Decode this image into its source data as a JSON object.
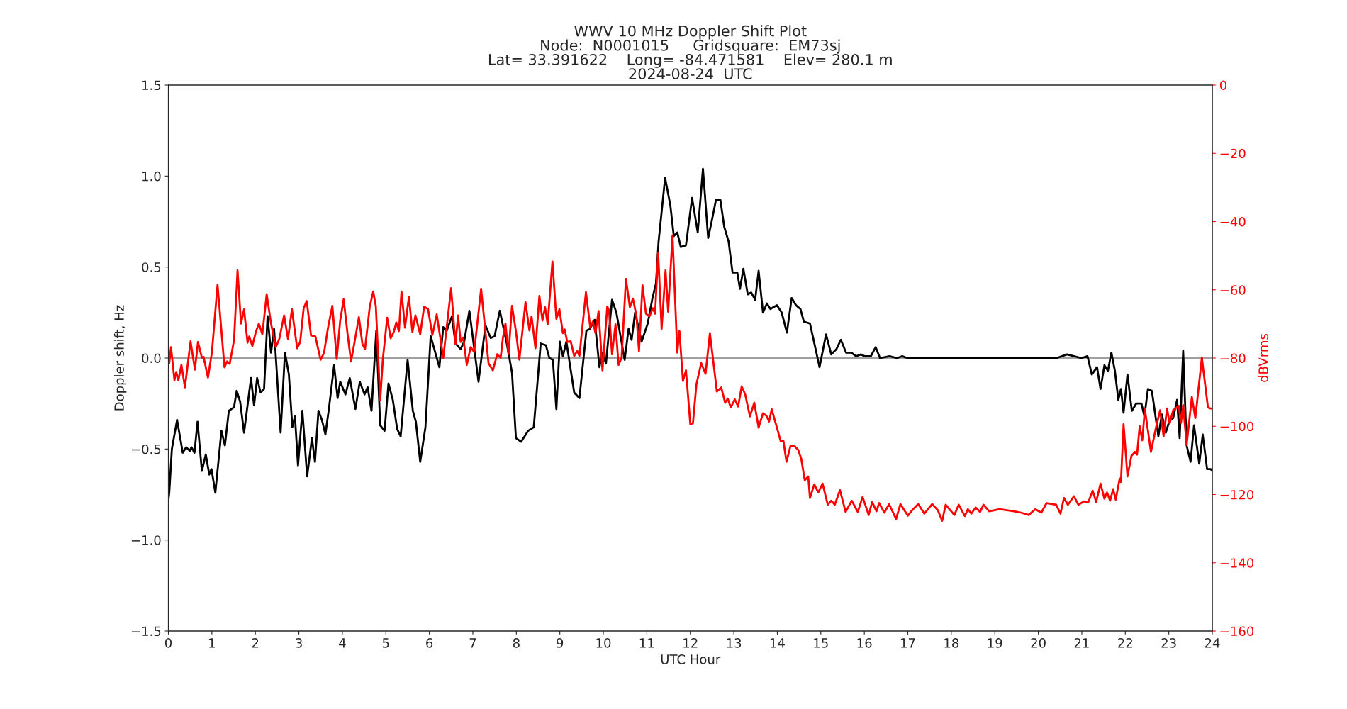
{
  "chart_data": {
    "type": "line",
    "title": "WWV 10 MHz Doppler Shift Plot\nNode:  N0001015     Gridsquare:  EM73sj\nLat= 33.391622    Long= -84.471581    Elev= 280.1 m\n2024-08-24  UTC",
    "xlabel": "UTC Hour",
    "ylabel": "Doppler shift, Hz",
    "y2label": "dBVrms",
    "xlim": [
      0,
      24
    ],
    "xticks": [
      0,
      1,
      2,
      3,
      4,
      5,
      6,
      7,
      8,
      9,
      10,
      11,
      12,
      13,
      14,
      15,
      16,
      17,
      18,
      19,
      20,
      21,
      22,
      23,
      24
    ],
    "ylim": [
      -1.5,
      1.5
    ],
    "yticks": [
      {
        "value": -1.5,
        "label": "−1.5"
      },
      {
        "value": -1.0,
        "label": "−1.0"
      },
      {
        "value": -0.5,
        "label": "−0.5"
      },
      {
        "value": 0,
        "label": "0.0"
      },
      {
        "value": 0.5,
        "label": "0.5"
      },
      {
        "value": 1.0,
        "label": "1.0"
      },
      {
        "value": 1.5,
        "label": "1.5"
      }
    ],
    "y2lim": [
      -160,
      0
    ],
    "y2ticks": [
      {
        "value": -160,
        "label": "−160"
      },
      {
        "value": -140,
        "label": "−140"
      },
      {
        "value": -120,
        "label": "−120"
      },
      {
        "value": -100,
        "label": "−100"
      },
      {
        "value": -80,
        "label": "−80"
      },
      {
        "value": -60,
        "label": "−60"
      },
      {
        "value": -40,
        "label": "−40"
      },
      {
        "value": -20,
        "label": "−20"
      },
      {
        "value": 0,
        "label": "0"
      }
    ],
    "ref_lines": [
      {
        "axis": "y",
        "value": 0,
        "label": null,
        "color": "#808080"
      }
    ],
    "grid": false,
    "line_style": "solid",
    "series": [
      {
        "color": "#000000",
        "axis": "y",
        "x": [
          0,
          0.02,
          0.08,
          0.2,
          0.33,
          0.41,
          0.49,
          0.53,
          0.6,
          0.67,
          0.77,
          0.86,
          0.94,
          0.99,
          1.08,
          1.22,
          1.3,
          1.39,
          1.51,
          1.57,
          1.65,
          1.74,
          1.9,
          1.97,
          2.04,
          2.12,
          2.2,
          2.28,
          2.36,
          2.43,
          2.58,
          2.68,
          2.77,
          2.85,
          2.91,
          2.98,
          3.08,
          3.19,
          3.3,
          3.37,
          3.45,
          3.53,
          3.61,
          3.69,
          3.81,
          3.89,
          3.95,
          4.07,
          4.17,
          4.3,
          4.4,
          4.51,
          4.58,
          4.67,
          4.78,
          4.87,
          4.97,
          5.06,
          5.16,
          5.26,
          5.34,
          5.5,
          5.62,
          5.69,
          5.79,
          5.91,
          6.03,
          6.23,
          6.32,
          6.4,
          6.52,
          6.6,
          6.72,
          6.8,
          6.92,
          7.13,
          7.29,
          7.41,
          7.5,
          7.62,
          7.78,
          7.9,
          7.99,
          8.11,
          8.27,
          8.4,
          8.56,
          8.68,
          8.76,
          8.84,
          8.92,
          9.0,
          9.07,
          9.15,
          9.33,
          9.45,
          9.61,
          9.69,
          9.8,
          9.91,
          9.98,
          10.06,
          10.2,
          10.3,
          10.49,
          10.58,
          10.65,
          10.73,
          10.88,
          11.02,
          11.13,
          11.21,
          11.27,
          11.42,
          11.54,
          11.62,
          11.7,
          11.78,
          11.9,
          12.04,
          12.17,
          12.29,
          12.41,
          12.49,
          12.59,
          12.69,
          12.78,
          12.88,
          12.97,
          13.08,
          13.14,
          13.22,
          13.32,
          13.4,
          13.49,
          13.57,
          13.67,
          13.76,
          13.84,
          13.99,
          14.1,
          14.22,
          14.33,
          14.43,
          14.53,
          14.61,
          14.75,
          14.87,
          14.97,
          15.12,
          15.24,
          15.36,
          15.46,
          15.58,
          15.7,
          15.81,
          15.92,
          16.01,
          16.15,
          16.26,
          16.36,
          16.58,
          16.75,
          16.87,
          16.99,
          18,
          19,
          20.33,
          20.42,
          20.66,
          20.99,
          21.13,
          21.23,
          21.35,
          21.43,
          21.52,
          21.6,
          21.68,
          21.76,
          21.84,
          21.9,
          21.96,
          22.05,
          22.15,
          22.25,
          22.37,
          22.44,
          22.52,
          22.61,
          22.76,
          22.84,
          22.93,
          23.02,
          23.1,
          23.19,
          23.25,
          23.33,
          23.41,
          23.5,
          23.58,
          23.7,
          23.78,
          23.88,
          23.96,
          24
        ],
        "values": [
          -0.78,
          -0.74,
          -0.5,
          -0.34,
          -0.52,
          -0.49,
          -0.51,
          -0.49,
          -0.52,
          -0.35,
          -0.62,
          -0.53,
          -0.64,
          -0.61,
          -0.74,
          -0.4,
          -0.48,
          -0.29,
          -0.27,
          -0.18,
          -0.24,
          -0.41,
          -0.11,
          -0.26,
          -0.11,
          -0.19,
          -0.17,
          0.23,
          0.03,
          0.16,
          -0.41,
          0.03,
          -0.09,
          -0.38,
          -0.32,
          -0.59,
          -0.29,
          -0.65,
          -0.44,
          -0.57,
          -0.29,
          -0.34,
          -0.42,
          -0.28,
          -0.04,
          -0.22,
          -0.13,
          -0.2,
          -0.11,
          -0.28,
          -0.13,
          -0.2,
          -0.16,
          -0.29,
          0.15,
          -0.37,
          -0.4,
          -0.14,
          -0.23,
          -0.39,
          -0.43,
          -0.01,
          -0.29,
          -0.35,
          -0.57,
          -0.38,
          0.12,
          -0.05,
          0.17,
          0.15,
          0.23,
          0.08,
          0.05,
          0.09,
          0.26,
          -0.13,
          0.18,
          0.11,
          0.12,
          0.26,
          0.08,
          -0.08,
          -0.44,
          -0.46,
          -0.4,
          -0.38,
          0.08,
          0.07,
          0.0,
          -0.01,
          -0.28,
          0.09,
          0.01,
          0.09,
          -0.19,
          -0.22,
          0.15,
          0.16,
          0.21,
          -0.05,
          0.03,
          -0.03,
          0.32,
          0.25,
          -0.01,
          0.16,
          0.1,
          0.25,
          0.09,
          0.19,
          0.33,
          0.41,
          0.64,
          0.99,
          0.84,
          0.67,
          0.69,
          0.61,
          0.62,
          0.88,
          0.69,
          1.04,
          0.66,
          0.75,
          0.87,
          0.87,
          0.72,
          0.64,
          0.47,
          0.47,
          0.38,
          0.49,
          0.35,
          0.36,
          0.32,
          0.48,
          0.25,
          0.3,
          0.27,
          0.29,
          0.25,
          0.14,
          0.33,
          0.29,
          0.27,
          0.2,
          0.19,
          0.06,
          -0.05,
          0.13,
          0.02,
          0.05,
          0.1,
          0.03,
          0.03,
          0.01,
          0.02,
          0.01,
          0.01,
          0.06,
          0.0,
          0.01,
          0.0,
          0.01,
          0.0,
          0.0,
          0.0,
          0.0,
          0.0,
          0.02,
          0.0,
          0.01,
          -0.09,
          -0.05,
          -0.17,
          -0.04,
          -0.07,
          0.03,
          -0.07,
          -0.23,
          -0.17,
          -0.3,
          -0.09,
          -0.29,
          -0.25,
          -0.25,
          -0.32,
          -0.17,
          -0.18,
          -0.43,
          -0.31,
          -0.41,
          -0.34,
          -0.33,
          -0.23,
          -0.44,
          0.04,
          -0.48,
          -0.57,
          -0.37,
          -0.58,
          -0.42,
          -0.61,
          -0.61,
          -0.62
        ]
      },
      {
        "color": "#ff0000",
        "axis": "y2",
        "x": [
          0.02,
          0.06,
          0.14,
          0.18,
          0.23,
          0.3,
          0.38,
          0.51,
          0.61,
          0.68,
          0.77,
          0.81,
          0.91,
          1.0,
          1.13,
          1.29,
          1.35,
          1.41,
          1.51,
          1.59,
          1.67,
          1.74,
          1.82,
          1.86,
          1.93,
          2.01,
          2.08,
          2.16,
          2.26,
          2.36,
          2.47,
          2.55,
          2.66,
          2.75,
          2.84,
          2.96,
          3.03,
          3.11,
          3.18,
          3.28,
          3.38,
          3.5,
          3.58,
          3.67,
          3.77,
          3.87,
          3.95,
          4.03,
          4.12,
          4.2,
          4.28,
          4.38,
          4.46,
          4.52,
          4.63,
          4.71,
          4.77,
          4.87,
          4.93,
          5.03,
          5.11,
          5.18,
          5.24,
          5.3,
          5.36,
          5.44,
          5.53,
          5.61,
          5.68,
          5.79,
          5.88,
          5.97,
          6.07,
          6.17,
          6.32,
          6.5,
          6.6,
          6.66,
          6.72,
          6.78,
          6.86,
          6.95,
          7.03,
          7.19,
          7.28,
          7.36,
          7.46,
          7.56,
          7.64,
          7.69,
          7.75,
          7.82,
          7.9,
          7.99,
          8.07,
          8.21,
          8.3,
          8.35,
          8.44,
          8.53,
          8.6,
          8.66,
          8.72,
          8.83,
          8.92,
          8.99,
          9.07,
          9.11,
          9.17,
          9.25,
          9.33,
          9.4,
          9.45,
          9.6,
          9.7,
          9.76,
          9.82,
          9.89,
          9.98,
          10.09,
          10.13,
          10.2,
          10.28,
          10.35,
          10.42,
          10.52,
          10.61,
          10.68,
          10.76,
          10.82,
          10.9,
          10.98,
          11.06,
          11.14,
          11.19,
          11.26,
          11.34,
          11.43,
          11.49,
          11.59,
          11.7,
          11.75,
          11.83,
          11.9,
          12.0,
          12.06,
          12.14,
          12.25,
          12.35,
          12.45,
          12.61,
          12.71,
          12.8,
          12.86,
          12.93,
          13.02,
          13.1,
          13.18,
          13.26,
          13.37,
          13.47,
          13.57,
          13.67,
          13.75,
          13.81,
          13.87,
          13.98,
          14.08,
          14.14,
          14.21,
          14.3,
          14.39,
          14.48,
          14.55,
          14.63,
          14.71,
          14.75,
          14.85,
          14.94,
          15.04,
          15.16,
          15.24,
          15.32,
          15.44,
          15.57,
          15.71,
          15.85,
          15.96,
          16.1,
          16.18,
          16.28,
          16.34,
          16.46,
          16.57,
          16.73,
          16.83,
          17.0,
          17.12,
          17.24,
          17.38,
          17.56,
          17.69,
          17.79,
          17.87,
          18.07,
          18.17,
          18.31,
          18.38,
          18.46,
          18.56,
          18.66,
          18.74,
          18.87,
          19.11,
          19.44,
          19.6,
          19.78,
          19.93,
          20.07,
          20.19,
          20.41,
          20.51,
          20.59,
          20.68,
          20.82,
          20.92,
          21.05,
          21.15,
          21.25,
          21.33,
          21.43,
          21.52,
          21.58,
          21.65,
          21.72,
          21.78,
          21.87,
          21.9,
          21.96,
          22.05,
          22.14,
          22.22,
          22.27,
          22.33,
          22.39,
          22.45,
          22.59,
          22.7,
          22.8,
          22.88,
          22.96,
          23.02,
          23.1,
          23.23,
          23.28,
          23.33,
          23.41,
          23.53,
          23.61,
          23.76,
          23.9,
          23.96,
          24
        ],
        "values": [
          -81.5,
          -76.8,
          -86.5,
          -84.1,
          -86.5,
          -82.0,
          -88.6,
          -75.1,
          -83.4,
          -75.3,
          -79.9,
          -79.7,
          -85.7,
          -78.4,
          -58.5,
          -82.7,
          -81.0,
          -81.7,
          -74.7,
          -54.3,
          -69.9,
          -65.7,
          -75.5,
          -73.7,
          -76.5,
          -72.4,
          -69.9,
          -73.0,
          -61.3,
          -69.9,
          -76.8,
          -74.4,
          -67.5,
          -74.4,
          -65.7,
          -77.1,
          -75.3,
          -65.4,
          -63.3,
          -73.4,
          -73.7,
          -80.5,
          -78.4,
          -71.1,
          -64.7,
          -80.3,
          -69.0,
          -62.8,
          -73.0,
          -81.0,
          -75.3,
          -68.0,
          -75.8,
          -77.4,
          -64.9,
          -60.5,
          -64.9,
          -92.4,
          -80.5,
          -68.2,
          -74.2,
          -72.4,
          -69.6,
          -72.1,
          -60.5,
          -71.1,
          -62.0,
          -72.4,
          -67.5,
          -73.0,
          -64.9,
          -65.7,
          -73.2,
          -67.2,
          -79.9,
          -59.5,
          -75.8,
          -67.5,
          -75.3,
          -74.0,
          -82.0,
          -76.8,
          -78.2,
          -59.7,
          -71.1,
          -81.5,
          -83.6,
          -78.9,
          -79.9,
          -74.2,
          -69.9,
          -78.9,
          -64.7,
          -72.1,
          -80.5,
          -63.6,
          -71.9,
          -67.8,
          -77.1,
          -61.8,
          -69.0,
          -65.1,
          -70.1,
          -51.7,
          -68.5,
          -65.7,
          -72.7,
          -71.6,
          -75.3,
          -75.1,
          -79.4,
          -77.9,
          -79.4,
          -60.7,
          -71.1,
          -69.3,
          -72.7,
          -66.2,
          -83.6,
          -64.9,
          -65.9,
          -78.9,
          -70.1,
          -82.0,
          -79.9,
          -56.8,
          -65.1,
          -62.6,
          -67.5,
          -77.9,
          -58.7,
          -67.0,
          -67.8,
          -65.4,
          -67.0,
          -49.1,
          -71.4,
          -54.3,
          -66.4,
          -44.1,
          -78.4,
          -72.1,
          -86.7,
          -83.6,
          -99.4,
          -99.1,
          -87.7,
          -81.5,
          -84.6,
          -72.7,
          -89.8,
          -88.6,
          -93.1,
          -91.9,
          -94.5,
          -92.1,
          -94.2,
          -88.3,
          -90.6,
          -97.1,
          -93.1,
          -100.4,
          -96.2,
          -96.9,
          -98.6,
          -95.0,
          -99.9,
          -104.5,
          -104.3,
          -110.4,
          -105.9,
          -105.7,
          -106.9,
          -109.5,
          -115.8,
          -114.7,
          -121.0,
          -117.0,
          -119.4,
          -116.8,
          -123.0,
          -121.8,
          -123.0,
          -118.7,
          -125.1,
          -121.8,
          -125.1,
          -120.7,
          -126.0,
          -122.2,
          -124.9,
          -122.5,
          -125.3,
          -122.8,
          -127.2,
          -122.8,
          -126.2,
          -124.3,
          -122.8,
          -125.6,
          -122.8,
          -124.6,
          -127.7,
          -123.0,
          -126.0,
          -123.0,
          -126.3,
          -124.3,
          -125.6,
          -123.8,
          -125.1,
          -123.0,
          -124.9,
          -124.3,
          -124.9,
          -125.3,
          -126.0,
          -124.3,
          -125.3,
          -122.5,
          -123.0,
          -125.6,
          -121.0,
          -123.0,
          -120.5,
          -123.0,
          -122.0,
          -122.2,
          -118.9,
          -122.2,
          -116.8,
          -121.2,
          -119.4,
          -121.8,
          -118.4,
          -121.5,
          -115.3,
          -116.3,
          -99.4,
          -114.7,
          -108.7,
          -107.5,
          -108.3,
          -100.0,
          -104.1,
          -95.0,
          -107.5,
          -100.7,
          -95.3,
          -102.9,
          -94.8,
          -99.2,
          -95.3,
          -94.0,
          -99.0,
          -93.8,
          -105.4,
          -91.4,
          -97.6,
          -79.9,
          -94.5,
          -94.8,
          -94.8
        ]
      }
    ]
  }
}
